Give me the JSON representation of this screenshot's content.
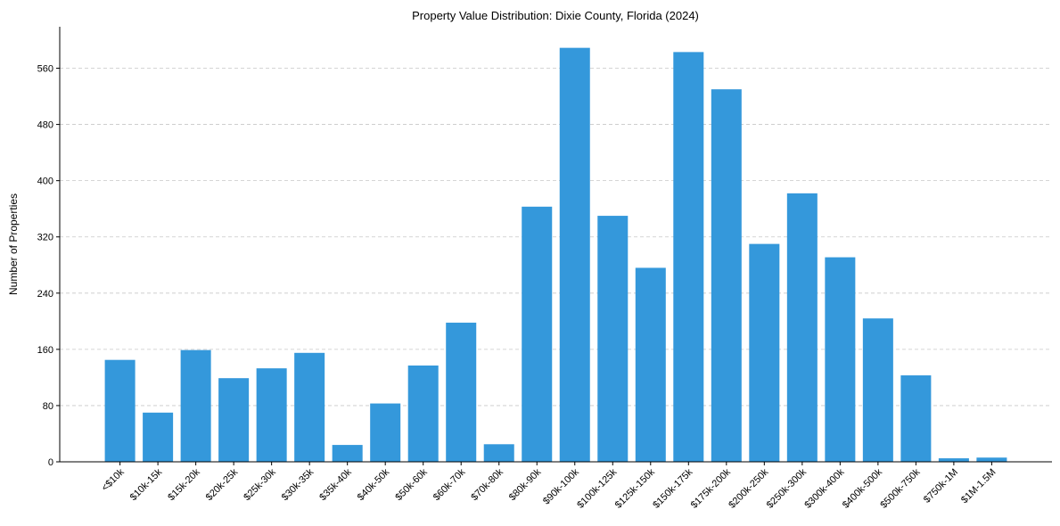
{
  "chart_data": {
    "type": "bar",
    "title": "Property Value Distribution: Dixie County, Florida (2024)",
    "xlabel": "",
    "ylabel": "Number of Properties",
    "categories": [
      "<$10k",
      "$10k-15k",
      "$15k-20k",
      "$20k-25k",
      "$25k-30k",
      "$30k-35k",
      "$35k-40k",
      "$40k-50k",
      "$50k-60k",
      "$60k-70k",
      "$70k-80k",
      "$80k-90k",
      "$90k-100k",
      "$100k-125k",
      "$125k-150k",
      "$150k-175k",
      "$175k-200k",
      "$200k-250k",
      "$250k-300k",
      "$300k-400k",
      "$400k-500k",
      "$500k-750k",
      "$750k-1M",
      "$1M-1.5M"
    ],
    "values": [
      145,
      70,
      159,
      119,
      133,
      155,
      24,
      83,
      137,
      198,
      25,
      363,
      589,
      350,
      276,
      583,
      530,
      310,
      382,
      291,
      204,
      123,
      5,
      6
    ],
    "ylim": [
      0,
      619
    ],
    "yticks": [
      0,
      80,
      160,
      240,
      320,
      400,
      480,
      560
    ],
    "grid": "y-dashed",
    "bar_color": "#3498db"
  }
}
